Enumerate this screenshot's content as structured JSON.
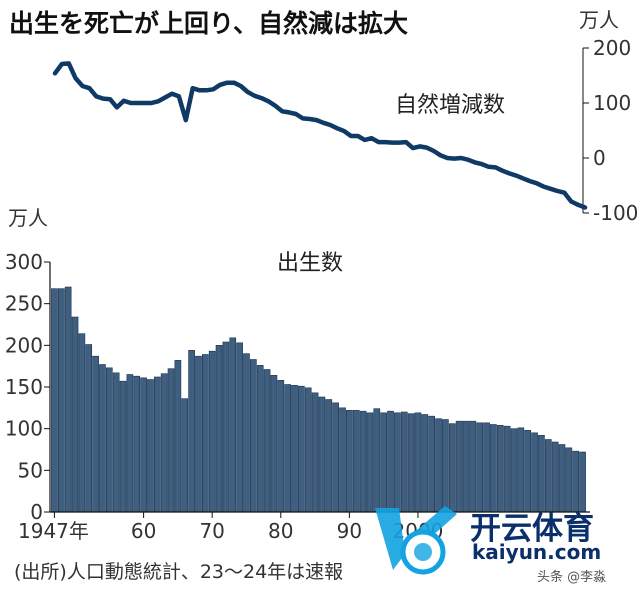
{
  "title": "出生を死亡が上回り、自然減は拡大",
  "source": "(出所)人口動態統計、23〜24年は速報",
  "watermark": {
    "brand": "开云体育",
    "domain": "kaiyun.com",
    "credit": "头条 @李淼"
  },
  "colors": {
    "line": "#0f3a66",
    "bar_fill": "#3e5f80",
    "bar_edge": "#1c3350",
    "axis": "#111111"
  },
  "chart_data": [
    {
      "type": "line",
      "unit": "万人",
      "series_label": "自然増減数",
      "ylim": [
        -100,
        200
      ],
      "yticks": [
        200,
        100,
        0,
        -100
      ],
      "x": [
        1947,
        1948,
        1949,
        1950,
        1951,
        1952,
        1953,
        1954,
        1955,
        1956,
        1957,
        1958,
        1959,
        1960,
        1961,
        1962,
        1963,
        1964,
        1965,
        1966,
        1967,
        1968,
        1969,
        1970,
        1971,
        1972,
        1973,
        1974,
        1975,
        1976,
        1977,
        1978,
        1979,
        1980,
        1981,
        1982,
        1983,
        1984,
        1985,
        1986,
        1987,
        1988,
        1989,
        1990,
        1991,
        1992,
        1993,
        1994,
        1995,
        1996,
        1997,
        1998,
        1999,
        2000,
        2001,
        2002,
        2003,
        2004,
        2005,
        2006,
        2007,
        2008,
        2009,
        2010,
        2011,
        2012,
        2013,
        2014,
        2015,
        2016,
        2017,
        2018,
        2019,
        2020,
        2021,
        2022,
        2023,
        2024
      ],
      "values": [
        154,
        171,
        172,
        145,
        131,
        127,
        112,
        108,
        107,
        92,
        104,
        100,
        100,
        100,
        100,
        103,
        110,
        117,
        112,
        69,
        127,
        123,
        123,
        125,
        133,
        137,
        137,
        131,
        120,
        113,
        109,
        103,
        95,
        85,
        83,
        80,
        72,
        71,
        69,
        64,
        60,
        54,
        49,
        40,
        40,
        33,
        36,
        29,
        29,
        28,
        28,
        29,
        18,
        21,
        19,
        13,
        5,
        0,
        -1,
        0,
        -3,
        -8,
        -11,
        -16,
        -17,
        -23,
        -28,
        -32,
        -37,
        -42,
        -46,
        -52,
        -56,
        -60,
        -63,
        -79,
        -85,
        -90
      ]
    },
    {
      "type": "bar",
      "unit": "万人",
      "series_label": "出生数",
      "ylim": [
        0,
        300
      ],
      "yticks": [
        300,
        250,
        200,
        150,
        100,
        50,
        0
      ],
      "xtick_labels": [
        "1947年",
        "60",
        "70",
        "80",
        "90",
        "2000"
      ],
      "xtick_years": [
        1947,
        1960,
        1970,
        1980,
        1990,
        2000
      ],
      "categories": [
        1947,
        1948,
        1949,
        1950,
        1951,
        1952,
        1953,
        1954,
        1955,
        1956,
        1957,
        1958,
        1959,
        1960,
        1961,
        1962,
        1963,
        1964,
        1965,
        1966,
        1967,
        1968,
        1969,
        1970,
        1971,
        1972,
        1973,
        1974,
        1975,
        1976,
        1977,
        1978,
        1979,
        1980,
        1981,
        1982,
        1983,
        1984,
        1985,
        1986,
        1987,
        1988,
        1989,
        1990,
        1991,
        1992,
        1993,
        1994,
        1995,
        1996,
        1997,
        1998,
        1999,
        2000,
        2001,
        2002,
        2003,
        2004,
        2005,
        2006,
        2007,
        2008,
        2009,
        2010,
        2011,
        2012,
        2013,
        2014,
        2015,
        2016,
        2017,
        2018,
        2019,
        2020,
        2021,
        2022,
        2023,
        2024
      ],
      "values": [
        268,
        268,
        270,
        234,
        214,
        201,
        187,
        177,
        173,
        167,
        157,
        165,
        163,
        161,
        159,
        162,
        166,
        172,
        182,
        136,
        194,
        187,
        189,
        193,
        200,
        204,
        209,
        203,
        190,
        183,
        176,
        171,
        164,
        158,
        153,
        152,
        151,
        149,
        143,
        138,
        135,
        131,
        125,
        122,
        122,
        121,
        119,
        124,
        119,
        121,
        119,
        120,
        118,
        119,
        117,
        115,
        112,
        111,
        106,
        109,
        109,
        109,
        107,
        107,
        105,
        104,
        103,
        100,
        101,
        98,
        95,
        92,
        87,
        84,
        81,
        77,
        73,
        72
      ]
    }
  ]
}
